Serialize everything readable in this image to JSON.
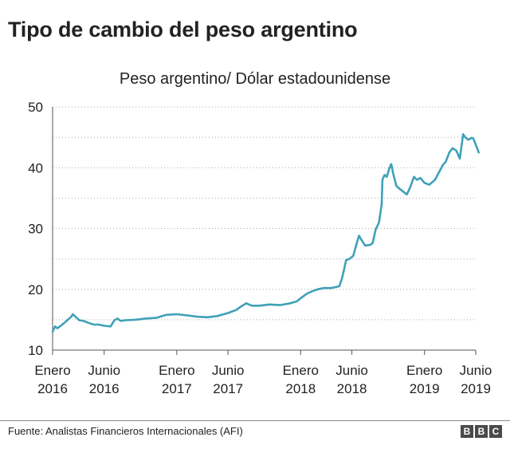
{
  "title": "Tipo de cambio del peso argentino",
  "source": "Fuente: Analistas Financieros Internacionales (AFI)",
  "logo": [
    "B",
    "B",
    "C"
  ],
  "colors": {
    "line": "#3fa1b7",
    "axis": "#555555",
    "grid": "#aaaaaa"
  },
  "chart_data": {
    "type": "line",
    "title": "Peso argentino/ Dólar estadounidense",
    "xlabel": "",
    "ylabel": "",
    "ylim": [
      10,
      50
    ],
    "yticks": [
      10,
      20,
      30,
      40,
      50
    ],
    "grid": "horizontal dotted",
    "x_range": [
      "2016-01",
      "2019-06"
    ],
    "xticks": [
      {
        "date": "2016-01",
        "line1": "Enero",
        "line2": "2016"
      },
      {
        "date": "2016-06",
        "line1": "Junio",
        "line2": "2016"
      },
      {
        "date": "2017-01",
        "line1": "Enero",
        "line2": "2017"
      },
      {
        "date": "2017-06",
        "line1": "Junio",
        "line2": "2017"
      },
      {
        "date": "2018-01",
        "line1": "Enero",
        "line2": "2018"
      },
      {
        "date": "2018-06",
        "line1": "Junio",
        "line2": "2018"
      },
      {
        "date": "2019-01",
        "line1": "Enero",
        "line2": "2019"
      },
      {
        "date": "2019-06",
        "line1": "Junio",
        "line2": "2019"
      }
    ],
    "series": [
      {
        "points": [
          [
            "2016-01-01",
            13.0
          ],
          [
            "2016-01-08",
            13.9
          ],
          [
            "2016-01-15",
            13.6
          ],
          [
            "2016-01-25",
            14.0
          ],
          [
            "2016-02-05",
            14.5
          ],
          [
            "2016-02-15",
            15.0
          ],
          [
            "2016-02-25",
            15.5
          ],
          [
            "2016-03-01",
            15.9
          ],
          [
            "2016-03-10",
            15.4
          ],
          [
            "2016-03-20",
            14.9
          ],
          [
            "2016-04-01",
            14.8
          ],
          [
            "2016-04-15",
            14.5
          ],
          [
            "2016-05-01",
            14.2
          ],
          [
            "2016-05-15",
            14.2
          ],
          [
            "2016-06-01",
            14.0
          ],
          [
            "2016-06-20",
            13.9
          ],
          [
            "2016-07-01",
            14.9
          ],
          [
            "2016-07-10",
            15.2
          ],
          [
            "2016-07-20",
            14.8
          ],
          [
            "2016-08-01",
            14.9
          ],
          [
            "2016-09-01",
            15.0
          ],
          [
            "2016-10-01",
            15.2
          ],
          [
            "2016-11-01",
            15.3
          ],
          [
            "2016-12-01",
            15.8
          ],
          [
            "2017-01-01",
            15.9
          ],
          [
            "2017-02-01",
            15.7
          ],
          [
            "2017-03-01",
            15.5
          ],
          [
            "2017-04-01",
            15.4
          ],
          [
            "2017-05-01",
            15.6
          ],
          [
            "2017-06-01",
            16.1
          ],
          [
            "2017-06-25",
            16.6
          ],
          [
            "2017-07-10",
            17.2
          ],
          [
            "2017-07-25",
            17.7
          ],
          [
            "2017-08-10",
            17.3
          ],
          [
            "2017-09-01",
            17.3
          ],
          [
            "2017-10-01",
            17.5
          ],
          [
            "2017-11-01",
            17.4
          ],
          [
            "2017-12-01",
            17.7
          ],
          [
            "2017-12-20",
            18.0
          ],
          [
            "2018-01-05",
            18.7
          ],
          [
            "2018-01-20",
            19.3
          ],
          [
            "2018-02-05",
            19.7
          ],
          [
            "2018-02-20",
            20.0
          ],
          [
            "2018-03-10",
            20.2
          ],
          [
            "2018-04-01",
            20.2
          ],
          [
            "2018-04-25",
            20.5
          ],
          [
            "2018-05-03",
            21.8
          ],
          [
            "2018-05-10",
            23.5
          ],
          [
            "2018-05-15",
            24.8
          ],
          [
            "2018-05-25",
            25.0
          ],
          [
            "2018-06-05",
            25.5
          ],
          [
            "2018-06-15",
            27.5
          ],
          [
            "2018-06-22",
            28.8
          ],
          [
            "2018-07-01",
            28.0
          ],
          [
            "2018-07-10",
            27.2
          ],
          [
            "2018-07-25",
            27.3
          ],
          [
            "2018-08-01",
            27.6
          ],
          [
            "2018-08-10",
            29.8
          ],
          [
            "2018-08-20",
            31.0
          ],
          [
            "2018-08-28",
            34.0
          ],
          [
            "2018-08-30",
            38.0
          ],
          [
            "2018-09-05",
            38.8
          ],
          [
            "2018-09-12",
            38.5
          ],
          [
            "2018-09-20",
            40.0
          ],
          [
            "2018-09-25",
            40.6
          ],
          [
            "2018-10-01",
            39.0
          ],
          [
            "2018-10-10",
            37.0
          ],
          [
            "2018-10-20",
            36.5
          ],
          [
            "2018-11-01",
            36.0
          ],
          [
            "2018-11-10",
            35.6
          ],
          [
            "2018-11-20",
            36.8
          ],
          [
            "2018-12-01",
            38.5
          ],
          [
            "2018-12-10",
            38.0
          ],
          [
            "2018-12-20",
            38.3
          ],
          [
            "2019-01-01",
            37.5
          ],
          [
            "2019-01-15",
            37.2
          ],
          [
            "2019-02-01",
            38.0
          ],
          [
            "2019-02-15",
            39.5
          ],
          [
            "2019-02-25",
            40.5
          ],
          [
            "2019-03-05",
            41.0
          ],
          [
            "2019-03-15",
            42.5
          ],
          [
            "2019-03-25",
            43.2
          ],
          [
            "2019-04-05",
            42.8
          ],
          [
            "2019-04-15",
            41.5
          ],
          [
            "2019-04-25",
            45.5
          ],
          [
            "2019-05-01",
            45.0
          ],
          [
            "2019-05-10",
            44.6
          ],
          [
            "2019-05-20",
            44.9
          ],
          [
            "2019-05-25",
            44.8
          ],
          [
            "2019-06-01",
            43.8
          ],
          [
            "2019-06-10",
            42.5
          ]
        ]
      }
    ]
  }
}
